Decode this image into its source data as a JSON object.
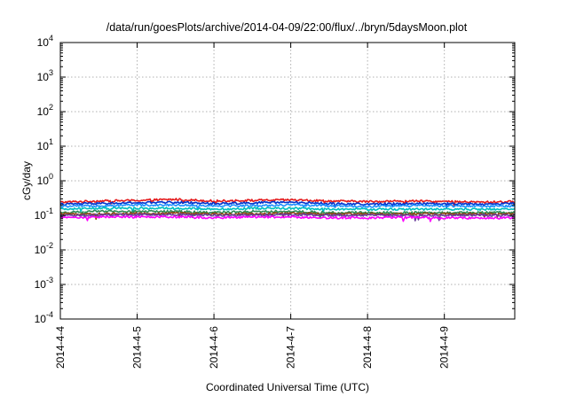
{
  "chart_data": {
    "type": "line",
    "title": "/data/run/goesPlots/archive/2014-04-09/22:00/flux/../bryn/5daysMoon.plot",
    "xlabel": "Coordinated Universal Time (UTC)",
    "ylabel": "cGy/day",
    "yscale": "log",
    "ylim": [
      0.0001,
      10000
    ],
    "xlim": [
      "2014-04-04 00:00",
      "2014-04-09 22:00"
    ],
    "grid": true,
    "legend": "none",
    "x_ticks": [
      "2014-4-4",
      "2014-4-5",
      "2014-4-6",
      "2014-4-7",
      "2014-4-8",
      "2014-4-9"
    ],
    "y_ticks": [
      {
        "base": "10",
        "exp": "4",
        "value": 10000
      },
      {
        "base": "10",
        "exp": "3",
        "value": 1000
      },
      {
        "base": "10",
        "exp": "2",
        "value": 100
      },
      {
        "base": "10",
        "exp": "1",
        "value": 10
      },
      {
        "base": "10",
        "exp": "0",
        "value": 1
      },
      {
        "base": "10",
        "exp": "-1",
        "value": 0.1
      },
      {
        "base": "10",
        "exp": "-2",
        "value": 0.01
      },
      {
        "base": "10",
        "exp": "-3",
        "value": 0.001
      },
      {
        "base": "10",
        "exp": "-4",
        "value": 0.0001
      }
    ],
    "series": [
      {
        "color": "#e41a1c",
        "level": 0.25,
        "points": [
          {
            "x": "2014-04-04 00:00",
            "y": 0.24
          },
          {
            "x": "2014-04-04 12:00",
            "y": 0.26
          },
          {
            "x": "2014-04-05 00:00",
            "y": 0.27
          },
          {
            "x": "2014-04-05 12:00",
            "y": 0.29
          },
          {
            "x": "2014-04-06 00:00",
            "y": 0.26
          },
          {
            "x": "2014-04-06 12:00",
            "y": 0.27
          },
          {
            "x": "2014-04-07 00:00",
            "y": 0.28
          },
          {
            "x": "2014-04-07 12:00",
            "y": 0.26
          },
          {
            "x": "2014-04-08 00:00",
            "y": 0.25
          },
          {
            "x": "2014-04-08 12:00",
            "y": 0.26
          },
          {
            "x": "2014-04-09 00:00",
            "y": 0.25
          },
          {
            "x": "2014-04-09 12:00",
            "y": 0.24
          },
          {
            "x": "2014-04-09 22:00",
            "y": 0.25
          }
        ]
      },
      {
        "color": "#0033cc",
        "level": 0.22,
        "points": [
          {
            "x": "2014-04-04 00:00",
            "y": 0.21
          },
          {
            "x": "2014-04-04 12:00",
            "y": 0.22
          },
          {
            "x": "2014-04-05 00:00",
            "y": 0.23
          },
          {
            "x": "2014-04-05 12:00",
            "y": 0.24
          },
          {
            "x": "2014-04-06 00:00",
            "y": 0.22
          },
          {
            "x": "2014-04-06 12:00",
            "y": 0.23
          },
          {
            "x": "2014-04-07 00:00",
            "y": 0.24
          },
          {
            "x": "2014-04-07 12:00",
            "y": 0.22
          },
          {
            "x": "2014-04-08 00:00",
            "y": 0.21
          },
          {
            "x": "2014-04-08 12:00",
            "y": 0.22
          },
          {
            "x": "2014-04-09 00:00",
            "y": 0.22
          },
          {
            "x": "2014-04-09 12:00",
            "y": 0.21
          },
          {
            "x": "2014-04-09 22:00",
            "y": 0.22
          }
        ]
      },
      {
        "color": "#1e90ff",
        "level": 0.19,
        "points": [
          {
            "x": "2014-04-04 00:00",
            "y": 0.18
          },
          {
            "x": "2014-04-04 12:00",
            "y": 0.19
          },
          {
            "x": "2014-04-05 00:00",
            "y": 0.2
          },
          {
            "x": "2014-04-05 12:00",
            "y": 0.2
          },
          {
            "x": "2014-04-06 00:00",
            "y": 0.19
          },
          {
            "x": "2014-04-06 12:00",
            "y": 0.19
          },
          {
            "x": "2014-04-07 00:00",
            "y": 0.2
          },
          {
            "x": "2014-04-07 12:00",
            "y": 0.19
          },
          {
            "x": "2014-04-08 00:00",
            "y": 0.18
          },
          {
            "x": "2014-04-08 12:00",
            "y": 0.19
          },
          {
            "x": "2014-04-09 00:00",
            "y": 0.19
          },
          {
            "x": "2014-04-09 12:00",
            "y": 0.18
          },
          {
            "x": "2014-04-09 22:00",
            "y": 0.19
          }
        ]
      },
      {
        "color": "#00bfbf",
        "level": 0.155,
        "points": [
          {
            "x": "2014-04-04 00:00",
            "y": 0.15
          },
          {
            "x": "2014-04-04 12:00",
            "y": 0.16
          },
          {
            "x": "2014-04-05 00:00",
            "y": 0.16
          },
          {
            "x": "2014-04-05 12:00",
            "y": 0.16
          },
          {
            "x": "2014-04-06 00:00",
            "y": 0.15
          },
          {
            "x": "2014-04-06 12:00",
            "y": 0.16
          },
          {
            "x": "2014-04-07 00:00",
            "y": 0.16
          },
          {
            "x": "2014-04-07 12:00",
            "y": 0.15
          },
          {
            "x": "2014-04-08 00:00",
            "y": 0.15
          },
          {
            "x": "2014-04-08 12:00",
            "y": 0.15
          },
          {
            "x": "2014-04-09 00:00",
            "y": 0.15
          },
          {
            "x": "2014-04-09 12:00",
            "y": 0.15
          },
          {
            "x": "2014-04-09 22:00",
            "y": 0.15
          }
        ]
      },
      {
        "color": "#2e8b57",
        "level": 0.125,
        "points": [
          {
            "x": "2014-04-04 00:00",
            "y": 0.12
          },
          {
            "x": "2014-04-04 12:00",
            "y": 0.13
          },
          {
            "x": "2014-04-05 00:00",
            "y": 0.13
          },
          {
            "x": "2014-04-05 12:00",
            "y": 0.13
          },
          {
            "x": "2014-04-06 00:00",
            "y": 0.12
          },
          {
            "x": "2014-04-06 12:00",
            "y": 0.13
          },
          {
            "x": "2014-04-07 00:00",
            "y": 0.13
          },
          {
            "x": "2014-04-07 12:00",
            "y": 0.12
          },
          {
            "x": "2014-04-08 00:00",
            "y": 0.12
          },
          {
            "x": "2014-04-08 12:00",
            "y": 0.12
          },
          {
            "x": "2014-04-09 00:00",
            "y": 0.12
          },
          {
            "x": "2014-04-09 12:00",
            "y": 0.12
          },
          {
            "x": "2014-04-09 22:00",
            "y": 0.12
          }
        ]
      },
      {
        "color": "#8b4513",
        "level": 0.112,
        "points": [
          {
            "x": "2014-04-04 00:00",
            "y": 0.11
          },
          {
            "x": "2014-04-04 12:00",
            "y": 0.11
          },
          {
            "x": "2014-04-05 00:00",
            "y": 0.115
          },
          {
            "x": "2014-04-05 12:00",
            "y": 0.115
          },
          {
            "x": "2014-04-06 00:00",
            "y": 0.11
          },
          {
            "x": "2014-04-06 12:00",
            "y": 0.11
          },
          {
            "x": "2014-04-07 00:00",
            "y": 0.115
          },
          {
            "x": "2014-04-07 12:00",
            "y": 0.11
          },
          {
            "x": "2014-04-08 00:00",
            "y": 0.11
          },
          {
            "x": "2014-04-08 12:00",
            "y": 0.11
          },
          {
            "x": "2014-04-09 00:00",
            "y": 0.11
          },
          {
            "x": "2014-04-09 12:00",
            "y": 0.11
          },
          {
            "x": "2014-04-09 22:00",
            "y": 0.11
          }
        ]
      },
      {
        "color": "#6a3d9a",
        "level": 0.1,
        "points": [
          {
            "x": "2014-04-04 00:00",
            "y": 0.1
          },
          {
            "x": "2014-04-04 12:00",
            "y": 0.1
          },
          {
            "x": "2014-04-05 00:00",
            "y": 0.105
          },
          {
            "x": "2014-04-05 12:00",
            "y": 0.105
          },
          {
            "x": "2014-04-06 00:00",
            "y": 0.1
          },
          {
            "x": "2014-04-06 12:00",
            "y": 0.1
          },
          {
            "x": "2014-04-07 00:00",
            "y": 0.105
          },
          {
            "x": "2014-04-07 12:00",
            "y": 0.1
          },
          {
            "x": "2014-04-08 00:00",
            "y": 0.1
          },
          {
            "x": "2014-04-08 12:00",
            "y": 0.1
          },
          {
            "x": "2014-04-09 00:00",
            "y": 0.1
          },
          {
            "x": "2014-04-09 12:00",
            "y": 0.1
          },
          {
            "x": "2014-04-09 22:00",
            "y": 0.1
          }
        ]
      },
      {
        "color": "#ff00ff",
        "level": 0.088,
        "points": [
          {
            "x": "2014-04-04 00:00",
            "y": 0.085
          },
          {
            "x": "2014-04-04 12:00",
            "y": 0.09
          },
          {
            "x": "2014-04-05 00:00",
            "y": 0.09
          },
          {
            "x": "2014-04-05 12:00",
            "y": 0.09
          },
          {
            "x": "2014-04-06 00:00",
            "y": 0.085
          },
          {
            "x": "2014-04-06 12:00",
            "y": 0.09
          },
          {
            "x": "2014-04-07 00:00",
            "y": 0.09
          },
          {
            "x": "2014-04-07 12:00",
            "y": 0.085
          },
          {
            "x": "2014-04-08 00:00",
            "y": 0.085
          },
          {
            "x": "2014-04-08 12:00",
            "y": 0.088
          },
          {
            "x": "2014-04-09 00:00",
            "y": 0.085
          },
          {
            "x": "2014-04-09 12:00",
            "y": 0.083
          },
          {
            "x": "2014-04-09 22:00",
            "y": 0.085
          }
        ]
      }
    ]
  }
}
